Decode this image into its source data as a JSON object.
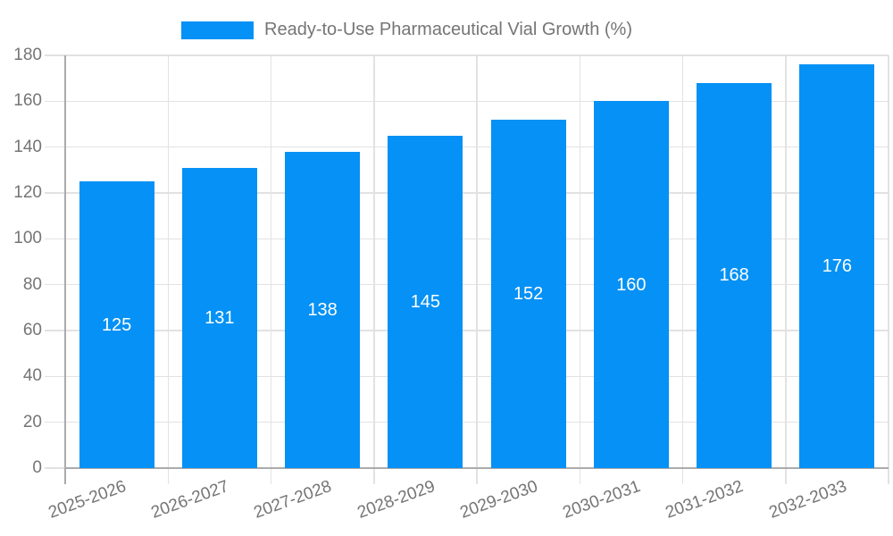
{
  "chart_data": {
    "type": "bar",
    "title": "Ready-to-Use Pharmaceutical Vial Growth (%)",
    "legend_label": "Ready-to-Use Pharmaceutical Vial Growth (%)",
    "legend_position": "top",
    "categories": [
      "2025-2026",
      "2026-2027",
      "2027-2028",
      "2028-2029",
      "2029-2030",
      "2030-2031",
      "2031-2032",
      "2032-2033"
    ],
    "values": [
      125,
      131,
      138,
      145,
      152,
      160,
      168,
      176
    ],
    "bar_value_labels": [
      "125",
      "131",
      "138",
      "145",
      "152",
      "160",
      "168",
      "176"
    ],
    "y_tick_labels": [
      "0",
      "20",
      "40",
      "60",
      "80",
      "100",
      "120",
      "140",
      "160",
      "180"
    ],
    "xlabel": "",
    "ylabel": "",
    "ylim": [
      0,
      180
    ],
    "ytick_step": 20,
    "grid": true,
    "colors": {
      "bar": "#0591f5",
      "bar_label": "#ffffff",
      "axis_text": "#757575",
      "gridline": "#e2e2e2",
      "axis_line": "#ababab",
      "background": "#ffffff"
    }
  }
}
